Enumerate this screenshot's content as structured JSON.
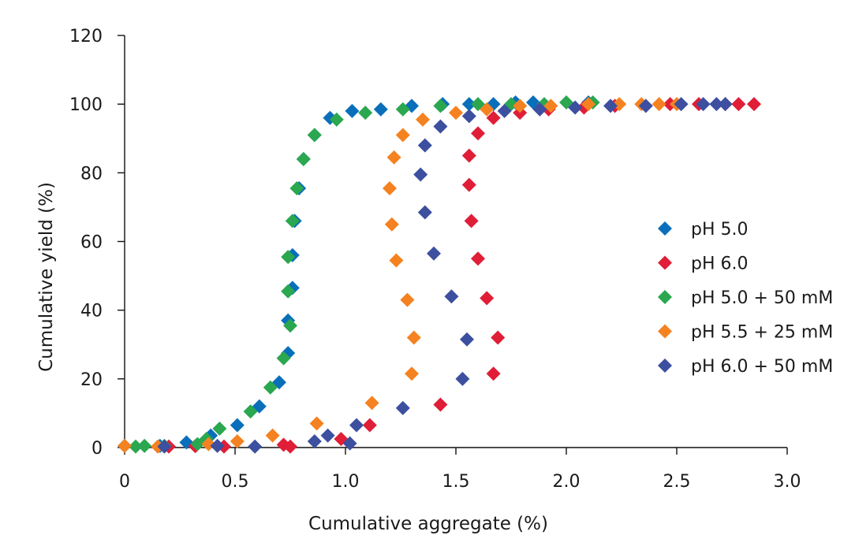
{
  "chart_data": {
    "type": "scatter",
    "title": "",
    "xlabel": "Cumulative aggregate (%)",
    "ylabel": "Cumulative yield (%)",
    "xlim": [
      0,
      3.0
    ],
    "ylim": [
      0,
      120
    ],
    "x_ticks": [
      {
        "value": 0,
        "label": "0"
      },
      {
        "value": 0.5,
        "label": "0.5"
      },
      {
        "value": 1.0,
        "label": "1.0"
      },
      {
        "value": 1.5,
        "label": "1.5"
      },
      {
        "value": 2.0,
        "label": "2.0"
      },
      {
        "value": 2.5,
        "label": "2.5"
      },
      {
        "value": 3.0,
        "label": "3.0"
      }
    ],
    "y_ticks": [
      {
        "value": 0,
        "label": "0"
      },
      {
        "value": 20,
        "label": "20"
      },
      {
        "value": 40,
        "label": "40"
      },
      {
        "value": 60,
        "label": "60"
      },
      {
        "value": 80,
        "label": "80"
      },
      {
        "value": 100,
        "label": "100"
      },
      {
        "value": 120,
        "label": "120"
      }
    ],
    "grid": false,
    "legend_position": "right",
    "marker": "diamond",
    "series": [
      {
        "name": "pH 5.0",
        "color": "#0a6fba",
        "points": [
          [
            0.0,
            0.5
          ],
          [
            0.16,
            0.5
          ],
          [
            0.28,
            1.5
          ],
          [
            0.39,
            3.5
          ],
          [
            0.51,
            6.5
          ],
          [
            0.61,
            12
          ],
          [
            0.7,
            19
          ],
          [
            0.74,
            27.5
          ],
          [
            0.74,
            37
          ],
          [
            0.76,
            46.5
          ],
          [
            0.76,
            56
          ],
          [
            0.77,
            66
          ],
          [
            0.79,
            75.5
          ],
          [
            0.81,
            84
          ],
          [
            0.86,
            91
          ],
          [
            0.93,
            96
          ],
          [
            1.03,
            98
          ],
          [
            1.16,
            98.5
          ],
          [
            1.3,
            99.5
          ],
          [
            1.44,
            100
          ],
          [
            1.56,
            100
          ],
          [
            1.67,
            100
          ],
          [
            1.77,
            100.5
          ],
          [
            1.85,
            100.5
          ],
          [
            2.1,
            100.5
          ]
        ]
      },
      {
        "name": "pH 6.0",
        "color": "#e01e37",
        "points": [
          [
            0.2,
            0.3
          ],
          [
            0.32,
            0.4
          ],
          [
            0.45,
            0.3
          ],
          [
            0.72,
            0.8
          ],
          [
            0.75,
            0.3
          ],
          [
            0.98,
            2.5
          ],
          [
            1.11,
            6.5
          ],
          [
            1.43,
            12.5
          ],
          [
            1.67,
            21.5
          ],
          [
            1.69,
            32
          ],
          [
            1.64,
            43.5
          ],
          [
            1.6,
            55
          ],
          [
            1.57,
            66
          ],
          [
            1.56,
            76.5
          ],
          [
            1.56,
            85
          ],
          [
            1.6,
            91.5
          ],
          [
            1.67,
            96
          ],
          [
            1.79,
            97.5
          ],
          [
            1.92,
            98.5
          ],
          [
            2.08,
            99
          ],
          [
            2.22,
            99.5
          ],
          [
            2.47,
            100
          ],
          [
            2.6,
            100
          ],
          [
            2.72,
            100
          ],
          [
            2.78,
            100
          ],
          [
            2.85,
            100
          ]
        ]
      },
      {
        "name": "pH 5.0 + 50 mM",
        "color": "#2aa74f",
        "points": [
          [
            0.05,
            0.3
          ],
          [
            0.09,
            0.5
          ],
          [
            0.18,
            0.5
          ],
          [
            0.33,
            1
          ],
          [
            0.37,
            2.5
          ],
          [
            0.43,
            5.5
          ],
          [
            0.57,
            10.5
          ],
          [
            0.66,
            17.5
          ],
          [
            0.72,
            26
          ],
          [
            0.75,
            35.5
          ],
          [
            0.74,
            45.5
          ],
          [
            0.74,
            55.5
          ],
          [
            0.76,
            66
          ],
          [
            0.78,
            75.5
          ],
          [
            0.81,
            84
          ],
          [
            0.86,
            91
          ],
          [
            0.96,
            95.5
          ],
          [
            1.09,
            97.5
          ],
          [
            1.26,
            98.5
          ],
          [
            1.43,
            99.5
          ],
          [
            1.6,
            100
          ],
          [
            1.75,
            100
          ],
          [
            1.9,
            100
          ],
          [
            2.0,
            100.5
          ],
          [
            2.12,
            100.5
          ]
        ]
      },
      {
        "name": "pH 5.5 + 25 mM",
        "color": "#f58220",
        "points": [
          [
            0.0,
            0.5
          ],
          [
            0.15,
            0.3
          ],
          [
            0.38,
            1
          ],
          [
            0.51,
            1.8
          ],
          [
            0.67,
            3.5
          ],
          [
            0.87,
            7
          ],
          [
            1.12,
            13
          ],
          [
            1.3,
            21.5
          ],
          [
            1.31,
            32
          ],
          [
            1.28,
            43
          ],
          [
            1.23,
            54.5
          ],
          [
            1.21,
            65
          ],
          [
            1.2,
            75.5
          ],
          [
            1.22,
            84.5
          ],
          [
            1.26,
            91
          ],
          [
            1.35,
            95.5
          ],
          [
            1.5,
            97.5
          ],
          [
            1.64,
            98.5
          ],
          [
            1.79,
            99.5
          ],
          [
            1.93,
            99.5
          ],
          [
            2.1,
            100
          ],
          [
            2.24,
            100
          ],
          [
            2.34,
            100
          ],
          [
            2.42,
            100
          ],
          [
            2.5,
            100
          ]
        ]
      },
      {
        "name": "pH 6.0 + 50 mM",
        "color": "#3d4f9f",
        "points": [
          [
            0.18,
            0.3
          ],
          [
            0.42,
            0.5
          ],
          [
            0.59,
            0.3
          ],
          [
            0.86,
            1.8
          ],
          [
            0.92,
            3.5
          ],
          [
            1.02,
            1.2
          ],
          [
            1.05,
            6.5
          ],
          [
            1.26,
            11.5
          ],
          [
            1.53,
            20
          ],
          [
            1.55,
            31.5
          ],
          [
            1.48,
            44
          ],
          [
            1.4,
            56.5
          ],
          [
            1.36,
            68.5
          ],
          [
            1.34,
            79.5
          ],
          [
            1.36,
            88
          ],
          [
            1.43,
            93.5
          ],
          [
            1.56,
            96.5
          ],
          [
            1.72,
            98
          ],
          [
            1.88,
            98.5
          ],
          [
            2.04,
            99
          ],
          [
            2.2,
            99.5
          ],
          [
            2.36,
            99.5
          ],
          [
            2.52,
            100
          ],
          [
            2.62,
            100
          ],
          [
            2.68,
            100
          ],
          [
            2.72,
            100
          ]
        ]
      }
    ]
  }
}
